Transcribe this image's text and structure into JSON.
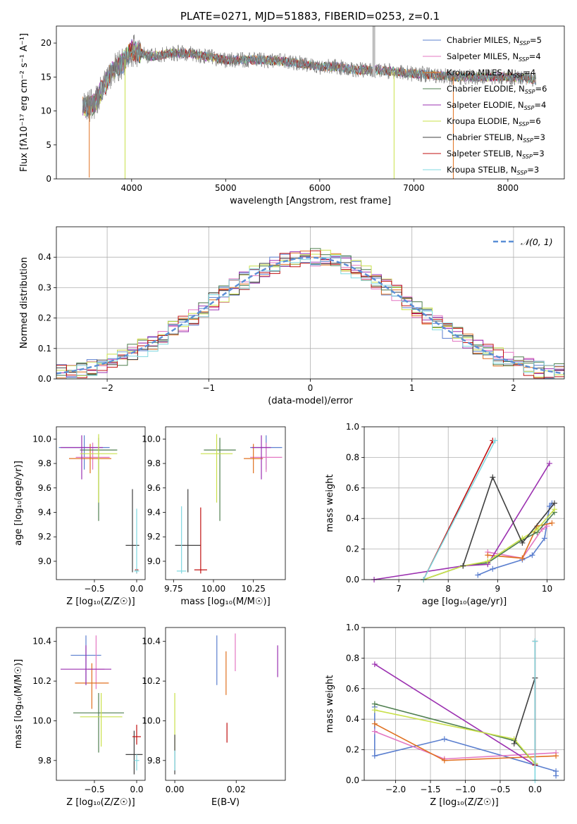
{
  "chart_data": [
    {
      "id": "spectrum",
      "type": "line",
      "title": "PLATE=0271, MJD=51883, FIBERID=0253, z=0.1",
      "xlabel": "wavelength [Angstrom, rest frame]",
      "ylabel": "Flux [fλ10⁻¹⁷ erg cm⁻² s⁻¹ A⁻¹]",
      "xlim": [
        3200,
        8600
      ],
      "ylim": [
        0,
        22.5
      ],
      "xticks": [
        4000,
        5000,
        6000,
        7000,
        8000
      ],
      "yticks": [
        0,
        5,
        10,
        15,
        20
      ],
      "grid": false,
      "legend_position": "top-right",
      "x": [
        3500,
        3600,
        3700,
        3800,
        3900,
        4000,
        4100,
        4200,
        4400,
        4600,
        4800,
        5000,
        5200,
        5400,
        5600,
        5800,
        6000,
        6200,
        6400,
        6600,
        6800,
        7000,
        7200,
        7400,
        7600,
        7800,
        8000,
        8200,
        8300
      ],
      "y_mean": [
        10.5,
        11.0,
        13.5,
        16.0,
        17.0,
        19.0,
        18.5,
        18.0,
        18.5,
        18.5,
        18.0,
        17.5,
        17.5,
        17.5,
        17.3,
        17.0,
        16.5,
        16.5,
        16.0,
        16.0,
        15.8,
        15.5,
        15.3,
        15.0,
        15.0,
        15.0,
        15.0,
        14.8,
        14.5
      ],
      "series": [
        {
          "name": "Chabrier MILES, N$_{SSP}$=5",
          "label_main": "Chabrier MILES, N",
          "label_sub": "SSP",
          "label_tail": "=5",
          "color": "#5b7fcf"
        },
        {
          "name": "Salpeter MILES, N$_{SSP}$=4",
          "label_main": "Salpeter MILES, N",
          "label_sub": "SSP",
          "label_tail": "=4",
          "color": "#e377c2"
        },
        {
          "name": "Kroupa MILES, N$_{SSP}$=4",
          "label_main": "Kroupa MILES, N",
          "label_sub": "SSP",
          "label_tail": "=4",
          "color": "#e07020"
        },
        {
          "name": "Chabrier ELODIE, N$_{SSP}$=6",
          "label_main": "Chabrier ELODIE, N",
          "label_sub": "SSP",
          "label_tail": "=6",
          "color": "#4f7f4f"
        },
        {
          "name": "Salpeter ELODIE, N$_{SSP}$=4",
          "label_main": "Salpeter ELODIE, N",
          "label_sub": "SSP",
          "label_tail": "=4",
          "color": "#9b30b0"
        },
        {
          "name": "Kroupa ELODIE, N$_{SSP}$=6",
          "label_main": "Kroupa ELODIE, N",
          "label_sub": "SSP",
          "label_tail": "=6",
          "color": "#c9e04a"
        },
        {
          "name": "Chabrier STELIB, N$_{SSP}$=3",
          "label_main": "Chabrier STELIB, N",
          "label_sub": "SSP",
          "label_tail": "=3",
          "color": "#404040"
        },
        {
          "name": "Salpeter STELIB, N$_{SSP}$=3",
          "label_main": "Salpeter STELIB, N",
          "label_sub": "SSP",
          "label_tail": "=3",
          "color": "#c01010"
        },
        {
          "name": "Kroupa STELIB, N$_{SSP}$=3",
          "label_main": "Kroupa STELIB, N",
          "label_sub": "SSP",
          "label_tail": "=3",
          "color": "#7fd8e0"
        }
      ],
      "data_color": "#7f7f7f"
    },
    {
      "id": "residuals",
      "type": "line",
      "xlabel": "(data-model)/error",
      "ylabel": "Normed distribution",
      "xlim": [
        -2.5,
        2.5
      ],
      "ylim": [
        0,
        0.5
      ],
      "xticks": [
        -2,
        -1,
        0,
        1,
        2
      ],
      "yticks": [
        0.0,
        0.1,
        0.2,
        0.3,
        0.4
      ],
      "grid": true,
      "legend_position": "top-right",
      "reference": {
        "name": "$\\mathcal{N}(0,1)$",
        "label": "𝒩(0, 1)",
        "color": "#5b8fd6"
      },
      "hist_bin_width": 0.1
    },
    {
      "id": "age_vs_Z",
      "type": "scatter",
      "xlabel": "Z [log₁₀(Z/Z☉)]",
      "ylabel": "age  [log₁₀(age/yr)]",
      "xlim": [
        -0.95,
        0.1
      ],
      "ylim": [
        8.85,
        10.1
      ],
      "xticks": [
        -0.5,
        0.0
      ],
      "yticks": [
        9.0,
        9.2,
        9.4,
        9.6,
        9.8,
        10.0
      ],
      "points": [
        {
          "series": "Chabrier MILES",
          "x": -0.62,
          "y": 9.93,
          "xerr": 0.3,
          "yerr_lo": 0.18,
          "yerr_hi": 0.1
        },
        {
          "series": "Salpeter MILES",
          "x": -0.52,
          "y": 9.85,
          "xerr": 0.2,
          "yerr_lo": 0.1,
          "yerr_hi": 0.12
        },
        {
          "series": "Kroupa MILES",
          "x": -0.55,
          "y": 9.84,
          "xerr": 0.25,
          "yerr_lo": 0.12,
          "yerr_hi": 0.12
        },
        {
          "series": "Chabrier ELODIE",
          "x": -0.45,
          "y": 9.91,
          "xerr": 0.22,
          "yerr_lo": 0.58,
          "yerr_hi": 0.1
        },
        {
          "series": "Salpeter ELODIE",
          "x": -0.65,
          "y": 9.93,
          "xerr": 0.25,
          "yerr_lo": 0.26,
          "yerr_hi": 0.1
        },
        {
          "series": "Kroupa ELODIE",
          "x": -0.45,
          "y": 9.88,
          "xerr": 0.22,
          "yerr_lo": 0.4,
          "yerr_hi": 0.16
        },
        {
          "series": "Chabrier STELIB",
          "x": -0.05,
          "y": 9.13,
          "xerr": 0.08,
          "yerr_lo": 0.22,
          "yerr_hi": 0.46
        },
        {
          "series": "Salpeter STELIB",
          "x": 0.0,
          "y": 8.93,
          "xerr": 0.02,
          "yerr_lo": 0.03,
          "yerr_hi": 0.01
        },
        {
          "series": "Kroupa STELIB",
          "x": 0.0,
          "y": 8.92,
          "xerr": 0.03,
          "yerr_lo": 0.02,
          "yerr_hi": 0.51
        }
      ]
    },
    {
      "id": "age_vs_mass",
      "type": "scatter",
      "xlabel": "mass [log₁₀(M/M☉)]",
      "ylabel": "",
      "xlim": [
        9.7,
        10.45
      ],
      "ylim": [
        8.85,
        10.1
      ],
      "xticks": [
        9.75,
        10.0,
        10.25
      ],
      "yticks": [
        9.0,
        9.2,
        9.4,
        9.6,
        9.8,
        10.0
      ],
      "points": [
        {
          "series": "Chabrier MILES",
          "x": 10.33,
          "y": 9.93,
          "xerr": 0.1,
          "yerr_lo": 0.18,
          "yerr_hi": 0.1
        },
        {
          "series": "Salpeter MILES",
          "x": 10.33,
          "y": 9.85,
          "xerr": 0.1,
          "yerr_lo": 0.12,
          "yerr_hi": 0.12
        },
        {
          "series": "Kroupa MILES",
          "x": 10.25,
          "y": 9.84,
          "xerr": 0.06,
          "yerr_lo": 0.12,
          "yerr_hi": 0.12
        },
        {
          "series": "Chabrier ELODIE",
          "x": 10.04,
          "y": 9.91,
          "xerr": 0.1,
          "yerr_lo": 0.58,
          "yerr_hi": 0.1
        },
        {
          "series": "Salpeter ELODIE",
          "x": 10.3,
          "y": 9.93,
          "xerr": 0.06,
          "yerr_lo": 0.26,
          "yerr_hi": 0.1
        },
        {
          "series": "Kroupa ELODIE",
          "x": 10.02,
          "y": 9.88,
          "xerr": 0.1,
          "yerr_lo": 0.4,
          "yerr_hi": 0.16
        },
        {
          "series": "Chabrier STELIB",
          "x": 9.84,
          "y": 9.13,
          "xerr": 0.08,
          "yerr_lo": 0.22,
          "yerr_hi": 0.46
        },
        {
          "series": "Salpeter STELIB",
          "x": 9.92,
          "y": 8.93,
          "xerr": 0.04,
          "yerr_lo": 0.03,
          "yerr_hi": 0.51
        },
        {
          "series": "Kroupa STELIB",
          "x": 9.8,
          "y": 8.92,
          "xerr": 0.03,
          "yerr_lo": 0.02,
          "yerr_hi": 0.53
        }
      ]
    },
    {
      "id": "mass_weight_vs_age",
      "type": "line",
      "xlabel": "age  [log₁₀(age/yr)]",
      "ylabel": "mass weight",
      "xlim": [
        6.3,
        10.35
      ],
      "ylim": [
        0,
        1.0
      ],
      "xticks": [
        7,
        8,
        9,
        10
      ],
      "yticks": [
        0.0,
        0.2,
        0.4,
        0.6,
        0.8,
        1.0
      ],
      "grid": true,
      "series": [
        {
          "name": "Chabrier MILES",
          "x": [
            8.6,
            8.9,
            9.5,
            9.7,
            9.95,
            10.05,
            10.1
          ],
          "y": [
            0.03,
            0.07,
            0.13,
            0.16,
            0.27,
            0.48,
            0.5
          ]
        },
        {
          "name": "Salpeter MILES",
          "x": [
            8.8,
            9.5,
            9.9,
            10.0
          ],
          "y": [
            0.18,
            0.14,
            0.33,
            0.35
          ]
        },
        {
          "name": "Kroupa MILES",
          "x": [
            8.8,
            9.5,
            9.8,
            10.1
          ],
          "y": [
            0.16,
            0.14,
            0.35,
            0.37
          ]
        },
        {
          "name": "Chabrier ELODIE",
          "x": [
            7.5,
            8.3,
            8.8,
            9.5,
            9.8,
            10.15
          ],
          "y": [
            0.0,
            0.09,
            0.11,
            0.26,
            0.31,
            0.44
          ]
        },
        {
          "name": "Salpeter ELODIE",
          "x": [
            6.5,
            8.3,
            8.8,
            10.05
          ],
          "y": [
            0.0,
            0.09,
            0.1,
            0.76
          ]
        },
        {
          "name": "Kroupa ELODIE",
          "x": [
            7.5,
            8.3,
            8.8,
            9.5,
            9.8,
            10.15
          ],
          "y": [
            0.0,
            0.09,
            0.12,
            0.27,
            0.33,
            0.46
          ]
        },
        {
          "name": "Chabrier STELIB",
          "x": [
            8.3,
            8.9,
            9.5,
            10.15
          ],
          "y": [
            0.09,
            0.67,
            0.24,
            0.5
          ]
        },
        {
          "name": "Salpeter STELIB",
          "x": [
            7.5,
            8.9
          ],
          "y": [
            0.0,
            0.91
          ]
        },
        {
          "name": "Kroupa STELIB",
          "x": [
            7.5,
            8.95
          ],
          "y": [
            0.0,
            0.91
          ]
        }
      ]
    },
    {
      "id": "mass_vs_Z",
      "type": "scatter",
      "xlabel": "Z [log₁₀(Z/Z☉)]",
      "ylabel": "mass [log₁₀(M/M☉)]",
      "xlim": [
        -0.95,
        0.1
      ],
      "ylim": [
        9.7,
        10.47
      ],
      "xticks": [
        -0.5,
        0.0
      ],
      "yticks": [
        9.8,
        10.0,
        10.2,
        10.4
      ],
      "points": [
        {
          "series": "Chabrier MILES",
          "x": -0.6,
          "y": 10.33,
          "xerr": 0.18,
          "yerr_lo": 0.15,
          "yerr_hi": 0.1
        },
        {
          "series": "Salpeter MILES",
          "x": -0.48,
          "y": 10.26,
          "xerr": 0.1,
          "yerr_lo": 0.1,
          "yerr_hi": 0.17
        },
        {
          "series": "Kroupa MILES",
          "x": -0.53,
          "y": 10.19,
          "xerr": 0.2,
          "yerr_lo": 0.13,
          "yerr_hi": 0.1
        },
        {
          "series": "Chabrier ELODIE",
          "x": -0.45,
          "y": 10.04,
          "xerr": 0.3,
          "yerr_lo": 0.2,
          "yerr_hi": 0.1
        },
        {
          "series": "Salpeter ELODIE",
          "x": -0.6,
          "y": 10.26,
          "xerr": 0.3,
          "yerr_lo": 0.08,
          "yerr_hi": 0.12
        },
        {
          "series": "Kroupa ELODIE",
          "x": -0.42,
          "y": 10.02,
          "xerr": 0.25,
          "yerr_lo": 0.15,
          "yerr_hi": 0.12
        },
        {
          "series": "Chabrier STELIB",
          "x": -0.03,
          "y": 9.83,
          "xerr": 0.1,
          "yerr_lo": 0.1,
          "yerr_hi": 0.12
        },
        {
          "series": "Salpeter STELIB",
          "x": 0.0,
          "y": 9.92,
          "xerr": 0.05,
          "yerr_lo": 0.04,
          "yerr_hi": 0.06
        },
        {
          "series": "Kroupa STELIB",
          "x": 0.0,
          "y": 9.8,
          "xerr": 0.03,
          "yerr_lo": 0.05,
          "yerr_hi": 0.03
        }
      ]
    },
    {
      "id": "mass_vs_EBV",
      "type": "scatter",
      "xlabel": "E(B-V)",
      "ylabel": "",
      "xlim": [
        -0.003,
        0.036
      ],
      "ylim": [
        9.7,
        10.47
      ],
      "xticks": [
        0.0,
        0.02
      ],
      "yticks": [
        9.8,
        10.0,
        10.2,
        10.4
      ],
      "points": [
        {
          "series": "Chabrier MILES",
          "x": 0.0137,
          "y": 10.3,
          "yerr_lo": 0.12,
          "yerr_hi": 0.13
        },
        {
          "series": "Salpeter MILES",
          "x": 0.0197,
          "y": 10.34,
          "yerr_lo": 0.09,
          "yerr_hi": 0.1
        },
        {
          "series": "Kroupa MILES",
          "x": 0.0167,
          "y": 10.23,
          "yerr_lo": 0.1,
          "yerr_hi": 0.12
        },
        {
          "series": "Salpeter ELODIE",
          "x": 0.0335,
          "y": 10.3,
          "yerr_lo": 0.08,
          "yerr_hi": 0.08
        },
        {
          "series": "Kroupa ELODIE",
          "x": 0.0,
          "y": 10.0,
          "yerr_lo": 0.15,
          "yerr_hi": 0.14
        },
        {
          "series": "Chabrier STELIB",
          "x": 0.0,
          "y": 9.83,
          "yerr_lo": 0.1,
          "yerr_hi": 0.1
        },
        {
          "series": "Salpeter STELIB",
          "x": 0.017,
          "y": 9.94,
          "yerr_lo": 0.05,
          "yerr_hi": 0.05
        },
        {
          "series": "Kroupa STELIB",
          "x": 0.0,
          "y": 9.8,
          "yerr_lo": 0.05,
          "yerr_hi": 0.05
        }
      ]
    },
    {
      "id": "mass_weight_vs_Z",
      "type": "line",
      "xlabel": "Z [log₁₀(Z/Z☉)]",
      "ylabel": "mass weight",
      "xlim": [
        -2.45,
        0.42
      ],
      "ylim": [
        0,
        1.0
      ],
      "xticks": [
        -2.0,
        -1.5,
        -1.0,
        -0.5,
        0.0
      ],
      "yticks": [
        0.0,
        0.2,
        0.4,
        0.6,
        0.8,
        1.0
      ],
      "grid": true,
      "series": [
        {
          "name": "Chabrier MILES",
          "x": [
            -2.3,
            -2.3,
            -1.3,
            0.0,
            0.3,
            0.3
          ],
          "y": [
            0.48,
            0.16,
            0.27,
            0.1,
            0.06,
            0.03
          ]
        },
        {
          "name": "Salpeter MILES",
          "x": [
            -2.3,
            -1.3,
            0.3
          ],
          "y": [
            0.32,
            0.14,
            0.18
          ]
        },
        {
          "name": "Kroupa MILES",
          "x": [
            -2.3,
            -1.3,
            0.3
          ],
          "y": [
            0.37,
            0.13,
            0.16
          ]
        },
        {
          "name": "Chabrier ELODIE",
          "x": [
            -2.3,
            -0.3,
            0.0
          ],
          "y": [
            0.5,
            0.26,
            0.11
          ]
        },
        {
          "name": "Salpeter ELODIE",
          "x": [
            -2.3,
            0.0
          ],
          "y": [
            0.76,
            0.1
          ]
        },
        {
          "name": "Kroupa ELODIE",
          "x": [
            -2.3,
            -0.3,
            0.0
          ],
          "y": [
            0.46,
            0.27,
            0.11
          ]
        },
        {
          "name": "Chabrier STELIB",
          "x": [
            -0.3,
            0.0,
            0.0
          ],
          "y": [
            0.24,
            0.67,
            0.1
          ]
        },
        {
          "name": "Salpeter STELIB",
          "x": [
            0.0,
            0.0
          ],
          "y": [
            0.91,
            0.1
          ]
        },
        {
          "name": "Kroupa STELIB",
          "x": [
            0.0,
            0.0
          ],
          "y": [
            0.91,
            0.0
          ]
        }
      ]
    }
  ]
}
